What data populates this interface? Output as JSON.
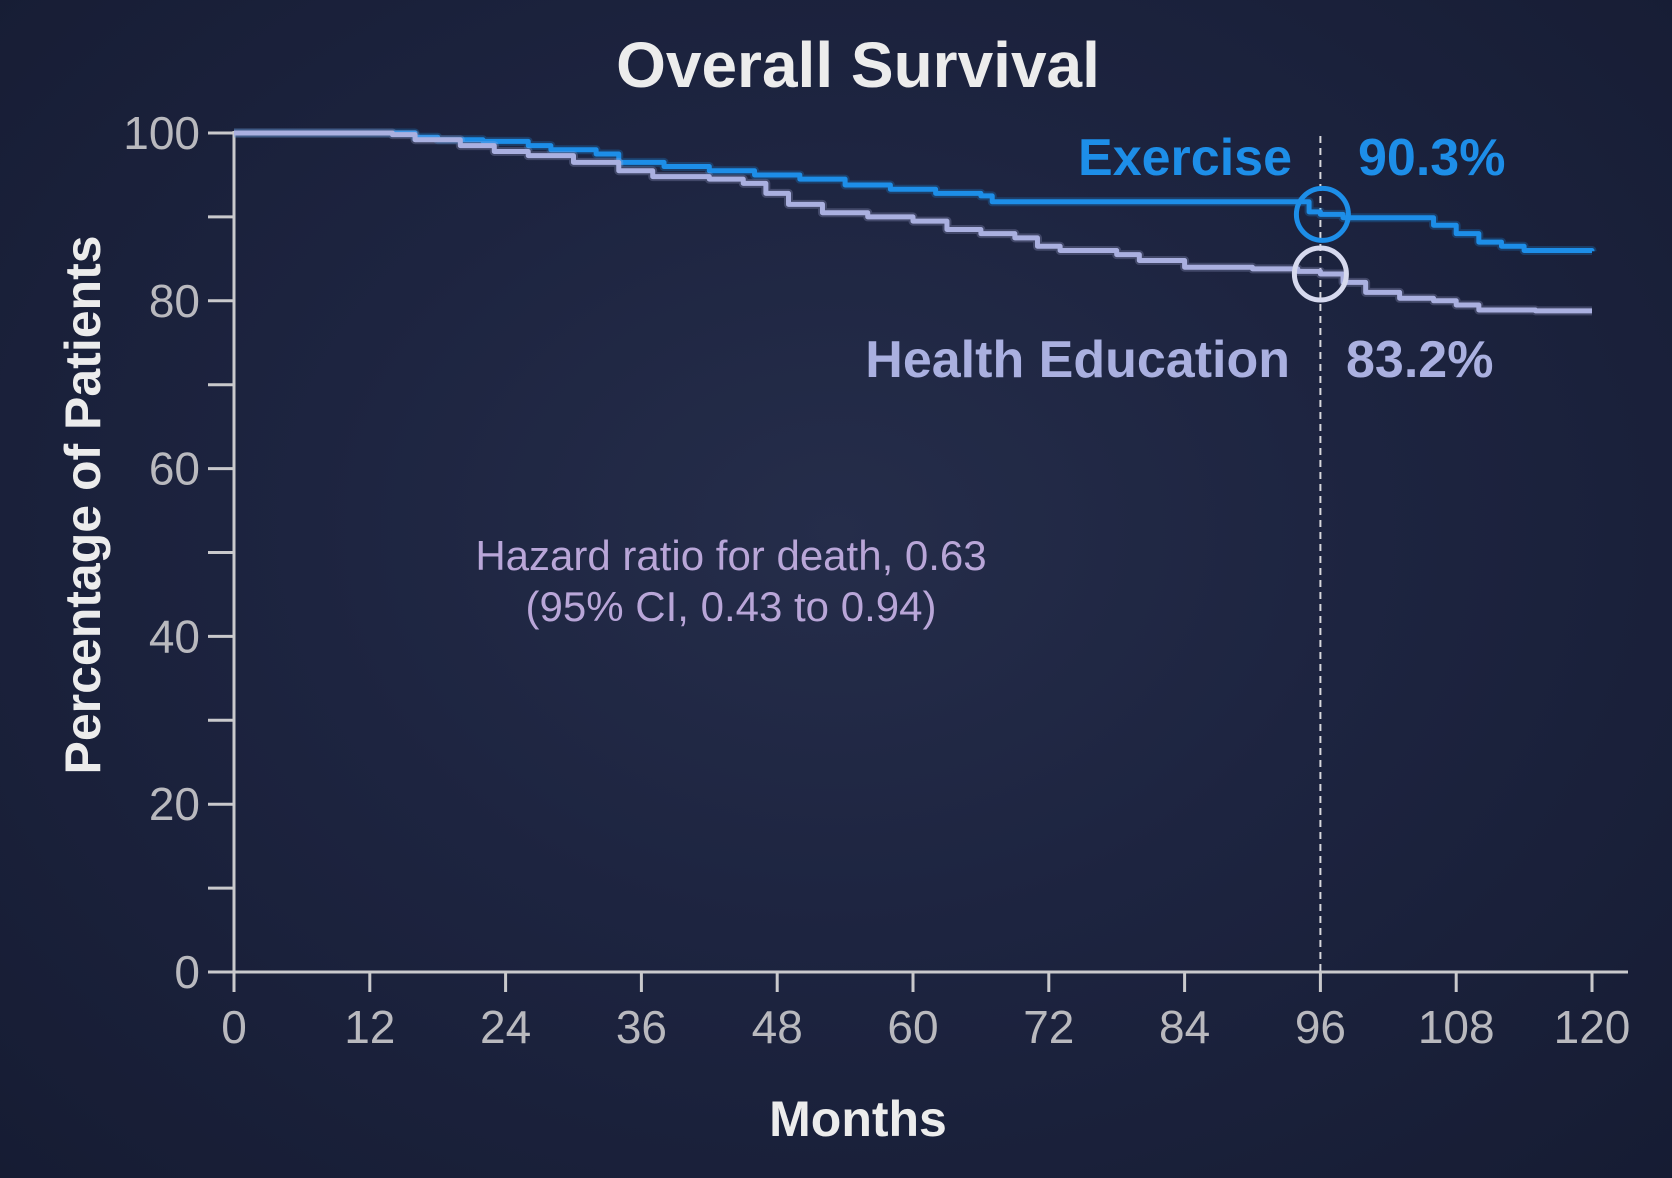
{
  "chart_data": {
    "type": "line",
    "title": "Overall Survival",
    "xlabel": "Months",
    "ylabel": "Percentage of Patients",
    "xlim": [
      0,
      120
    ],
    "ylim": [
      0,
      100
    ],
    "x_ticks": [
      0,
      12,
      24,
      36,
      48,
      60,
      72,
      84,
      96,
      108,
      120
    ],
    "y_ticks_labeled": [
      0,
      20,
      40,
      60,
      80,
      100
    ],
    "y_ticks_minor": [
      10,
      30,
      50,
      70,
      90
    ],
    "grid": false,
    "reference_line_x": 96,
    "annotation": {
      "line1": "Hazard ratio for death, 0.63",
      "line2": "(95% CI, 0.43 to 0.94)"
    },
    "series": [
      {
        "name": "Exercise",
        "color": "#1d8ee8",
        "value_label": "90.3%",
        "marked_x": 96,
        "marked_y": 90.3,
        "points": [
          [
            0,
            100
          ],
          [
            8,
            100
          ],
          [
            14,
            100
          ],
          [
            16,
            99.5
          ],
          [
            18,
            99.2
          ],
          [
            22,
            99
          ],
          [
            26,
            98.5
          ],
          [
            28,
            98
          ],
          [
            32,
            97.5
          ],
          [
            34,
            96.5
          ],
          [
            38,
            96
          ],
          [
            42,
            95.5
          ],
          [
            46,
            95
          ],
          [
            50,
            94.5
          ],
          [
            54,
            93.8
          ],
          [
            58,
            93.3
          ],
          [
            62,
            92.8
          ],
          [
            66,
            92.5
          ],
          [
            67,
            91.8
          ],
          [
            72,
            91.8
          ],
          [
            80,
            91.8
          ],
          [
            88,
            91.8
          ],
          [
            93,
            91.8
          ],
          [
            95,
            90.6
          ],
          [
            96,
            90.3
          ],
          [
            98,
            89.9
          ],
          [
            102,
            89.9
          ],
          [
            104,
            89.9
          ],
          [
            106,
            89
          ],
          [
            108,
            88
          ],
          [
            110,
            87
          ],
          [
            112,
            86.5
          ],
          [
            114,
            86
          ],
          [
            120,
            85.9
          ]
        ]
      },
      {
        "name": "Health Education",
        "color": "#aab0e0",
        "value_label": "83.2%",
        "marked_x": 96,
        "marked_y": 83.2,
        "points": [
          [
            0,
            100
          ],
          [
            8,
            100
          ],
          [
            12,
            100
          ],
          [
            14,
            99.8
          ],
          [
            16,
            99.2
          ],
          [
            20,
            98.5
          ],
          [
            23,
            97.8
          ],
          [
            26,
            97.3
          ],
          [
            30,
            96.5
          ],
          [
            34,
            95.5
          ],
          [
            37,
            94.8
          ],
          [
            42,
            94.5
          ],
          [
            45,
            94
          ],
          [
            47,
            92.8
          ],
          [
            49,
            91.5
          ],
          [
            52,
            90.5
          ],
          [
            56,
            90
          ],
          [
            60,
            89.5
          ],
          [
            63,
            88.5
          ],
          [
            66,
            88
          ],
          [
            69,
            87.5
          ],
          [
            71,
            86.5
          ],
          [
            73,
            86
          ],
          [
            78,
            85.5
          ],
          [
            80,
            84.8
          ],
          [
            84,
            84
          ],
          [
            90,
            83.8
          ],
          [
            94,
            83.5
          ],
          [
            96,
            83.2
          ],
          [
            98,
            82.2
          ],
          [
            100,
            81
          ],
          [
            103,
            80.3
          ],
          [
            106,
            80
          ],
          [
            108,
            79.5
          ],
          [
            110,
            78.9
          ],
          [
            115,
            78.8
          ],
          [
            120,
            78.8
          ]
        ]
      }
    ]
  }
}
